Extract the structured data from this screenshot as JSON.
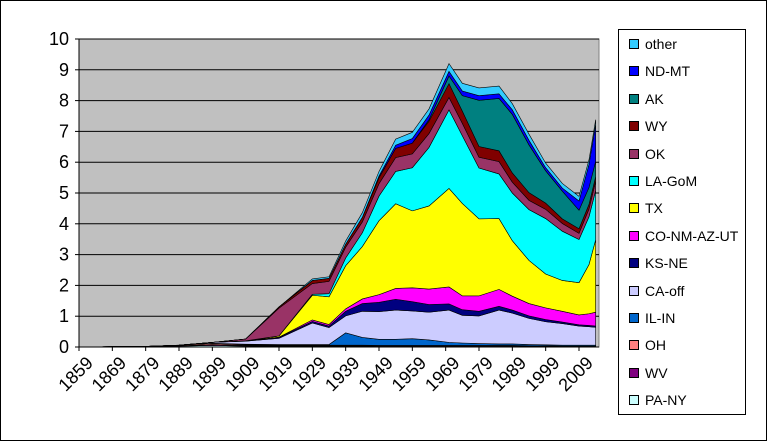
{
  "chart_data": {
    "type": "area",
    "stacked": true,
    "title": "",
    "xlabel": "",
    "ylabel": "",
    "xlim": [
      1859,
      2015
    ],
    "ylim": [
      0,
      10
    ],
    "grid": {
      "y_major": true,
      "step": 1
    },
    "background_color": "#c0c0c0",
    "legend_position": "right",
    "x_ticks": [
      1859,
      1869,
      1879,
      1889,
      1899,
      1909,
      1919,
      1929,
      1939,
      1949,
      1959,
      1969,
      1979,
      1989,
      1999,
      2009
    ],
    "x_tick_labels": [
      "1859",
      "1869",
      "1879",
      "1889",
      "1899",
      "1909",
      "1919",
      "1929",
      "1939",
      "1949",
      "1959",
      "1969",
      "1979",
      "1989",
      "1999",
      "2009"
    ],
    "y_ticks": [
      0,
      1,
      2,
      3,
      4,
      5,
      6,
      7,
      8,
      9,
      10
    ],
    "y_tick_labels": [
      "0",
      "1",
      "2",
      "3",
      "4",
      "5",
      "6",
      "7",
      "8",
      "9",
      "10"
    ],
    "x": [
      1859,
      1869,
      1879,
      1889,
      1899,
      1909,
      1919,
      1929,
      1934,
      1939,
      1944,
      1949,
      1954,
      1959,
      1964,
      1970,
      1974,
      1979,
      1985,
      1989,
      1994,
      1999,
      2004,
      2009,
      2012,
      2014
    ],
    "series": [
      {
        "name": "PA-NY",
        "color": "#ccffff",
        "values": [
          0.0,
          0.01,
          0.02,
          0.03,
          0.05,
          0.03,
          0.02,
          0.02,
          0.02,
          0.02,
          0.02,
          0.02,
          0.02,
          0.02,
          0.02,
          0.02,
          0.02,
          0.02,
          0.02,
          0.02,
          0.01,
          0.01,
          0.01,
          0.01,
          0.01,
          0.01
        ]
      },
      {
        "name": "WV",
        "color": "#800080",
        "values": [
          0.0,
          0.0,
          0.0,
          0.01,
          0.03,
          0.02,
          0.02,
          0.02,
          0.02,
          0.02,
          0.02,
          0.01,
          0.01,
          0.01,
          0.01,
          0.01,
          0.01,
          0.01,
          0.01,
          0.01,
          0.01,
          0.01,
          0.01,
          0.01,
          0.01,
          0.01
        ]
      },
      {
        "name": "OH",
        "color": "#ff8080",
        "values": [
          0.0,
          0.0,
          0.0,
          0.02,
          0.04,
          0.02,
          0.02,
          0.02,
          0.02,
          0.02,
          0.02,
          0.02,
          0.02,
          0.02,
          0.02,
          0.02,
          0.02,
          0.02,
          0.02,
          0.02,
          0.02,
          0.02,
          0.01,
          0.01,
          0.01,
          0.01
        ]
      },
      {
        "name": "IL-IN",
        "color": "#0066cc",
        "values": [
          0.0,
          0.0,
          0.0,
          0.0,
          0.0,
          0.02,
          0.02,
          0.02,
          0.02,
          0.4,
          0.25,
          0.2,
          0.2,
          0.22,
          0.18,
          0.1,
          0.08,
          0.06,
          0.05,
          0.05,
          0.04,
          0.03,
          0.03,
          0.03,
          0.03,
          0.03
        ]
      },
      {
        "name": "CA-off",
        "color": "#ccccff",
        "values": [
          0.0,
          0.0,
          0.0,
          0.0,
          0.03,
          0.1,
          0.2,
          0.7,
          0.55,
          0.55,
          0.85,
          0.9,
          0.95,
          0.9,
          0.9,
          1.05,
          0.9,
          0.9,
          1.1,
          1.0,
          0.85,
          0.75,
          0.7,
          0.62,
          0.6,
          0.58
        ]
      },
      {
        "name": "KS-NE",
        "color": "#000080",
        "values": [
          0.0,
          0.0,
          0.0,
          0.0,
          0.0,
          0.01,
          0.03,
          0.05,
          0.05,
          0.15,
          0.25,
          0.3,
          0.35,
          0.3,
          0.25,
          0.2,
          0.18,
          0.15,
          0.12,
          0.1,
          0.08,
          0.07,
          0.05,
          0.04,
          0.04,
          0.04
        ]
      },
      {
        "name": "CO-NM-AZ-UT",
        "color": "#ff00ff",
        "values": [
          0.0,
          0.0,
          0.0,
          0.0,
          0.0,
          0.0,
          0.01,
          0.05,
          0.05,
          0.08,
          0.15,
          0.25,
          0.35,
          0.45,
          0.5,
          0.55,
          0.45,
          0.5,
          0.55,
          0.45,
          0.4,
          0.38,
          0.35,
          0.32,
          0.38,
          0.45
        ]
      },
      {
        "name": "TX",
        "color": "#ffff00",
        "values": [
          0.0,
          0.0,
          0.0,
          0.0,
          0.0,
          0.0,
          0.04,
          0.8,
          0.9,
          1.4,
          1.7,
          2.4,
          2.75,
          2.5,
          2.7,
          3.2,
          3.0,
          2.5,
          2.3,
          1.8,
          1.4,
          1.1,
          1.0,
          1.05,
          1.6,
          2.35
        ]
      },
      {
        "name": "LA-GoM",
        "color": "#00ffff",
        "values": [
          0.0,
          0.0,
          0.0,
          0.0,
          0.0,
          0.0,
          0.0,
          0.03,
          0.1,
          0.25,
          0.45,
          0.8,
          1.05,
          1.4,
          1.9,
          2.55,
          2.2,
          1.65,
          1.45,
          1.55,
          1.65,
          1.8,
          1.6,
          1.4,
          1.55,
          1.6
        ]
      },
      {
        "name": "OK",
        "color": "#993366",
        "values": [
          0.0,
          0.0,
          0.0,
          0.0,
          0.0,
          0.06,
          0.9,
          0.35,
          0.4,
          0.35,
          0.35,
          0.4,
          0.45,
          0.45,
          0.45,
          0.4,
          0.4,
          0.35,
          0.4,
          0.35,
          0.3,
          0.3,
          0.25,
          0.2,
          0.25,
          0.3
        ]
      },
      {
        "name": "WY",
        "color": "#800000",
        "values": [
          0.0,
          0.0,
          0.0,
          0.0,
          0.0,
          0.0,
          0.04,
          0.1,
          0.1,
          0.1,
          0.15,
          0.2,
          0.3,
          0.35,
          0.4,
          0.45,
          0.4,
          0.35,
          0.35,
          0.3,
          0.25,
          0.2,
          0.15,
          0.15,
          0.15,
          0.15
        ]
      },
      {
        "name": "AK",
        "color": "#008080",
        "values": [
          0.0,
          0.0,
          0.0,
          0.0,
          0.0,
          0.0,
          0.0,
          0.0,
          0.0,
          0.0,
          0.0,
          0.0,
          0.0,
          0.0,
          0.05,
          0.25,
          0.5,
          1.5,
          1.7,
          1.9,
          1.55,
          1.05,
          0.9,
          0.6,
          0.55,
          0.5
        ]
      },
      {
        "name": "ND-MT",
        "color": "#0000ff",
        "values": [
          0.0,
          0.0,
          0.0,
          0.0,
          0.0,
          0.0,
          0.0,
          0.0,
          0.0,
          0.0,
          0.0,
          0.05,
          0.1,
          0.15,
          0.15,
          0.15,
          0.15,
          0.15,
          0.15,
          0.15,
          0.15,
          0.1,
          0.1,
          0.3,
          0.75,
          1.2
        ]
      },
      {
        "name": "other",
        "color": "#33ccff",
        "values": [
          0.0,
          0.0,
          0.0,
          0.0,
          0.0,
          0.0,
          0.0,
          0.05,
          0.05,
          0.1,
          0.15,
          0.15,
          0.2,
          0.2,
          0.2,
          0.25,
          0.25,
          0.25,
          0.25,
          0.2,
          0.2,
          0.15,
          0.15,
          0.15,
          0.15,
          0.15
        ]
      }
    ]
  }
}
